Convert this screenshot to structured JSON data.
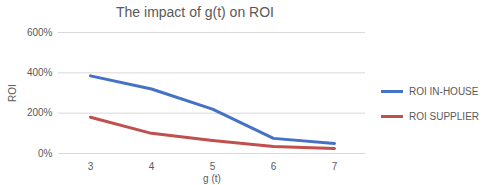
{
  "chart_data": {
    "type": "line",
    "title": "The impact of g(t) on ROI",
    "x_label": "g (t)",
    "y_label": "ROI",
    "categories": [
      "3",
      "4",
      "5",
      "6",
      "7"
    ],
    "series": [
      {
        "name": "ROI IN-HOUSE",
        "color": "#4472c4",
        "values": [
          385,
          320,
          220,
          75,
          50
        ]
      },
      {
        "name": "ROI SUPPLIER",
        "color": "#c0504d",
        "values": [
          180,
          100,
          65,
          35,
          25
        ]
      }
    ],
    "ylim": [
      0,
      600
    ],
    "yticks": [
      {
        "value": 0,
        "label": "0%"
      },
      {
        "value": 200,
        "label": "200%"
      },
      {
        "value": 400,
        "label": "400%"
      },
      {
        "value": 600,
        "label": "600%"
      }
    ],
    "grid": true,
    "legend": "right"
  }
}
